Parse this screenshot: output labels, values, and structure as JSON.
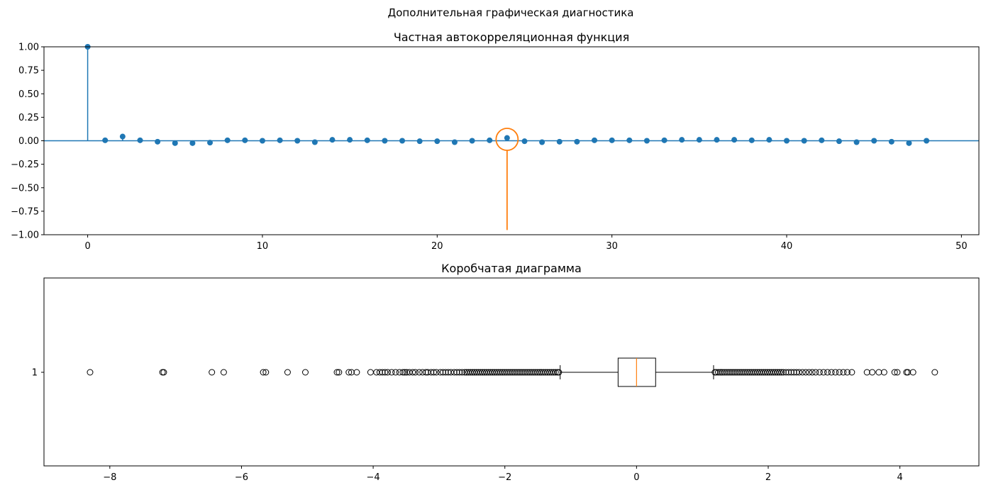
{
  "suptitle": "Дополнительная графическая диагностика",
  "colors": {
    "stem": "#1f77b4",
    "highlight": "#ff7f0e",
    "box": "#000000",
    "median": "#ff7f0e"
  },
  "chart_data": [
    {
      "type": "stem",
      "title": "Частная автокорреляционная функция",
      "xlim": [
        -2.5,
        51
      ],
      "ylim": [
        -1.0,
        1.0
      ],
      "x_ticks": [
        0,
        10,
        20,
        30,
        40,
        50
      ],
      "y_ticks": [
        -1.0,
        -0.75,
        -0.5,
        -0.25,
        0.0,
        0.25,
        0.5,
        0.75,
        1.0
      ],
      "y_tick_labels": [
        "−1.00",
        "−0.75",
        "−0.50",
        "−0.25",
        "0.00",
        "0.25",
        "0.50",
        "0.75",
        "1.00"
      ],
      "x_tick_labels": [
        "0",
        "10",
        "20",
        "30",
        "40",
        "50"
      ],
      "lags": [
        0,
        1,
        2,
        3,
        4,
        5,
        6,
        7,
        8,
        9,
        10,
        11,
        12,
        13,
        14,
        15,
        16,
        17,
        18,
        19,
        20,
        21,
        22,
        23,
        24,
        25,
        26,
        27,
        28,
        29,
        30,
        31,
        32,
        33,
        34,
        35,
        36,
        37,
        38,
        39,
        40,
        41,
        42,
        43,
        44,
        45,
        46,
        47,
        48
      ],
      "pacf": [
        1.0,
        0.005,
        0.045,
        0.005,
        -0.01,
        -0.025,
        -0.025,
        -0.02,
        0.005,
        0.005,
        0.0,
        0.005,
        0.0,
        -0.015,
        0.01,
        0.01,
        0.005,
        0.0,
        0.0,
        -0.005,
        -0.005,
        -0.015,
        0.0,
        0.005,
        0.03,
        -0.005,
        -0.015,
        -0.01,
        -0.01,
        0.005,
        0.005,
        0.005,
        0.0,
        0.005,
        0.01,
        0.01,
        0.01,
        0.01,
        0.005,
        0.01,
        0.0,
        0.0,
        0.005,
        -0.005,
        -0.015,
        0.0,
        -0.01,
        -0.025,
        0.0
      ],
      "highlight": {
        "lag": 24,
        "value": 0.03,
        "line_bottom": -0.95
      }
    },
    {
      "type": "boxplot",
      "title": "Коробчатая диаграмма",
      "xlim": [
        -9.0,
        5.2
      ],
      "x_ticks": [
        -8,
        -6,
        -4,
        -2,
        0,
        2,
        4
      ],
      "x_tick_labels": [
        "−8",
        "−6",
        "−4",
        "−2",
        "0",
        "2",
        "4"
      ],
      "y_tick_labels": [
        "1"
      ],
      "box": {
        "q1": -0.28,
        "median": 0.0,
        "q3": 0.29,
        "whisker_low": -1.16,
        "whisker_high": 1.17
      },
      "outliers": [
        -8.3,
        -7.2,
        -7.18,
        -6.45,
        -6.27,
        -5.67,
        -5.63,
        -5.3,
        -5.03,
        -4.55,
        -4.52,
        -4.37,
        -4.33,
        -4.25,
        -4.04,
        -3.95,
        -3.9,
        -3.86,
        -3.82,
        -3.78,
        -3.72,
        -3.66,
        -3.6,
        -3.55,
        -3.52,
        -3.49,
        -3.45,
        -3.4,
        -3.36,
        -3.3,
        -3.25,
        -3.2,
        -3.17,
        -3.12,
        -3.08,
        -3.04,
        -2.98,
        -2.94,
        -2.9,
        -2.86,
        -2.82,
        -2.77,
        -2.73,
        -2.69,
        -2.65,
        -2.61,
        -2.58,
        -2.55,
        -2.52,
        -2.49,
        -2.46,
        -2.43,
        -2.4,
        -2.37,
        -2.34,
        -2.31,
        -2.28,
        -2.25,
        -2.22,
        -2.19,
        -2.16,
        -2.13,
        -2.1,
        -2.07,
        -2.04,
        -2.01,
        -1.98,
        -1.95,
        -1.92,
        -1.89,
        -1.86,
        -1.83,
        -1.8,
        -1.77,
        -1.74,
        -1.71,
        -1.68,
        -1.65,
        -1.62,
        -1.59,
        -1.56,
        -1.53,
        -1.5,
        -1.47,
        -1.44,
        -1.41,
        -1.38,
        -1.35,
        -1.32,
        -1.29,
        -1.26,
        -1.23,
        -1.2,
        -1.18,
        1.19,
        1.21,
        1.24,
        1.27,
        1.3,
        1.33,
        1.36,
        1.39,
        1.42,
        1.45,
        1.48,
        1.51,
        1.54,
        1.57,
        1.6,
        1.63,
        1.66,
        1.69,
        1.72,
        1.75,
        1.78,
        1.81,
        1.84,
        1.87,
        1.9,
        1.93,
        1.96,
        1.99,
        2.02,
        2.05,
        2.08,
        2.11,
        2.14,
        2.17,
        2.2,
        2.23,
        2.27,
        2.31,
        2.35,
        2.39,
        2.43,
        2.47,
        2.52,
        2.57,
        2.62,
        2.67,
        2.72,
        2.78,
        2.84,
        2.9,
        2.96,
        3.02,
        3.08,
        3.14,
        3.2,
        3.27,
        3.5,
        3.58,
        3.68,
        3.76,
        3.92,
        3.96,
        4.1,
        4.12,
        4.2,
        4.53
      ]
    }
  ]
}
